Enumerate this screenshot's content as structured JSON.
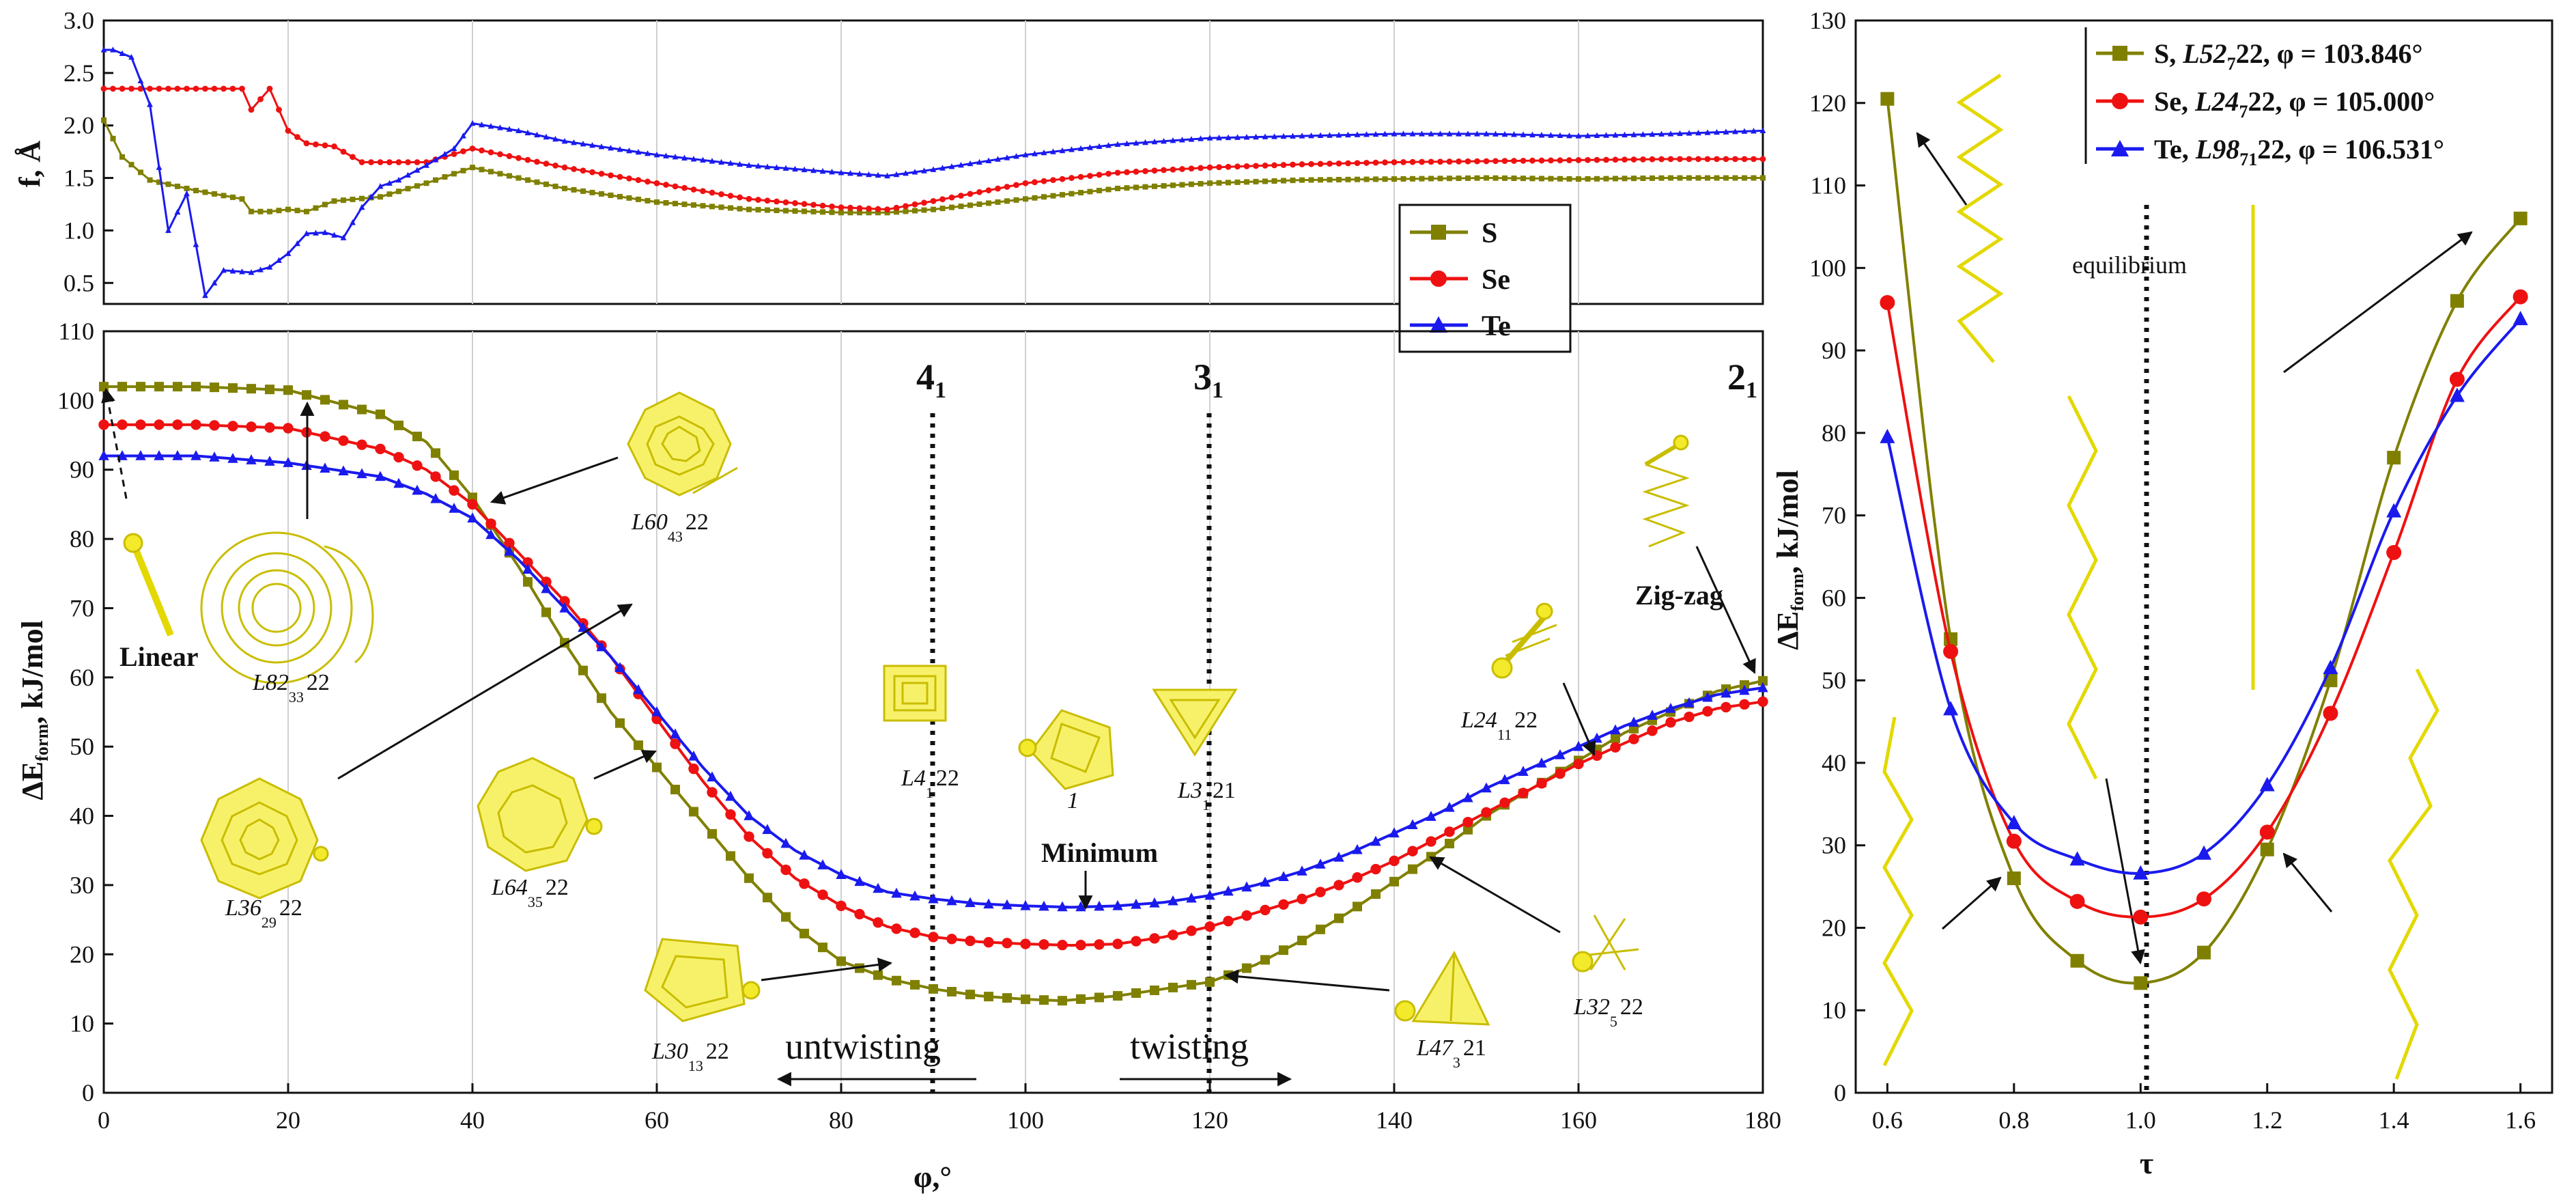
{
  "colors": {
    "S": "#808000",
    "Se": "#ee1111",
    "Te": "#1a1aee",
    "molecule": "#f2ea2a",
    "molecule_edge": "#c9bd00"
  },
  "chart_data": [
    {
      "id": "top-left",
      "type": "line",
      "ylabel": "f, Å",
      "xlim": [
        0,
        180
      ],
      "ylim": [
        0.3,
        3.0
      ],
      "yticks": [
        "0.5",
        "1.0",
        "1.5",
        "2.0",
        "2.5",
        "3.0"
      ],
      "legend": {
        "position": "bottom-right",
        "entries": [
          "S",
          "Se",
          "Te"
        ]
      },
      "series": [
        {
          "name": "S",
          "x": [
            0,
            2,
            5,
            10,
            15,
            16,
            18,
            20,
            22,
            25,
            30,
            35,
            40,
            50,
            60,
            70,
            80,
            85,
            90,
            100,
            110,
            120,
            130,
            140,
            150,
            160,
            170,
            180
          ],
          "y": [
            2.05,
            1.7,
            1.48,
            1.38,
            1.3,
            1.18,
            1.18,
            1.2,
            1.18,
            1.28,
            1.32,
            1.45,
            1.6,
            1.4,
            1.27,
            1.2,
            1.17,
            1.17,
            1.2,
            1.3,
            1.4,
            1.45,
            1.48,
            1.49,
            1.5,
            1.49,
            1.5,
            1.5
          ]
        },
        {
          "name": "Se",
          "x": [
            0,
            5,
            10,
            15,
            16,
            18,
            20,
            22,
            25,
            28,
            30,
            35,
            40,
            50,
            60,
            70,
            80,
            85,
            90,
            100,
            110,
            120,
            130,
            140,
            150,
            160,
            170,
            180
          ],
          "y": [
            2.35,
            2.35,
            2.35,
            2.35,
            2.15,
            2.35,
            1.95,
            1.83,
            1.8,
            1.65,
            1.65,
            1.65,
            1.78,
            1.6,
            1.45,
            1.3,
            1.22,
            1.2,
            1.28,
            1.45,
            1.55,
            1.6,
            1.63,
            1.65,
            1.66,
            1.67,
            1.68,
            1.68
          ]
        },
        {
          "name": "Te",
          "x": [
            0,
            1,
            3,
            5,
            7,
            9,
            11,
            13,
            16,
            18,
            20,
            22,
            24,
            26,
            28,
            30,
            32,
            35,
            38,
            40,
            45,
            50,
            60,
            70,
            80,
            85,
            90,
            100,
            110,
            120,
            130,
            140,
            150,
            160,
            170,
            180
          ],
          "y": [
            2.72,
            2.72,
            2.65,
            2.2,
            1.0,
            1.35,
            0.38,
            0.62,
            0.6,
            0.65,
            0.78,
            0.97,
            0.98,
            0.93,
            1.22,
            1.42,
            1.48,
            1.62,
            1.78,
            2.02,
            1.95,
            1.85,
            1.72,
            1.62,
            1.55,
            1.52,
            1.58,
            1.72,
            1.82,
            1.88,
            1.9,
            1.92,
            1.92,
            1.9,
            1.92,
            1.95
          ]
        }
      ]
    },
    {
      "id": "bottom-left",
      "type": "line",
      "title": "",
      "xlabel": "φ,°",
      "ylabel": "ΔEform, kJ/mol",
      "xlim": [
        0,
        180
      ],
      "ylim": [
        0,
        110
      ],
      "xticks": [
        "0",
        "20",
        "40",
        "60",
        "80",
        "100",
        "120",
        "140",
        "160",
        "180"
      ],
      "yticks": [
        "0",
        "10",
        "20",
        "30",
        "40",
        "50",
        "60",
        "70",
        "80",
        "90",
        "100",
        "110"
      ],
      "series": [
        {
          "name": "S",
          "x": [
            0,
            10,
            20,
            30,
            35,
            40,
            45,
            50,
            55,
            60,
            65,
            70,
            75,
            80,
            85,
            90,
            95,
            100,
            104,
            110,
            115,
            120,
            125,
            130,
            135,
            140,
            145,
            150,
            155,
            160,
            165,
            170,
            175,
            180
          ],
          "y": [
            102,
            102,
            101.5,
            98,
            94,
            86,
            76,
            65,
            55,
            47,
            39,
            31,
            24,
            19,
            16.5,
            15,
            14,
            13.5,
            13.3,
            14,
            15,
            16,
            18.5,
            22,
            26,
            30.5,
            35,
            40,
            44,
            48,
            52,
            55,
            58,
            59.5
          ]
        },
        {
          "name": "Se",
          "x": [
            0,
            10,
            20,
            30,
            35,
            40,
            45,
            50,
            55,
            60,
            65,
            70,
            75,
            80,
            85,
            90,
            95,
            100,
            105,
            110,
            115,
            120,
            125,
            130,
            135,
            140,
            145,
            150,
            155,
            160,
            165,
            170,
            175,
            180
          ],
          "y": [
            96.5,
            96.5,
            96,
            93,
            90,
            85,
            78,
            71,
            63,
            54,
            45,
            37,
            31,
            27,
            24,
            22.5,
            21.8,
            21.5,
            21.3,
            21.5,
            22.5,
            24,
            26,
            28,
            30.5,
            33.5,
            37,
            40.5,
            44,
            47.5,
            50.5,
            53.5,
            55.5,
            56.5
          ]
        },
        {
          "name": "Te",
          "x": [
            0,
            10,
            20,
            30,
            35,
            40,
            45,
            50,
            55,
            60,
            65,
            70,
            75,
            80,
            85,
            90,
            95,
            100,
            105,
            110,
            115,
            120,
            125,
            130,
            135,
            140,
            145,
            150,
            155,
            160,
            165,
            170,
            175,
            180
          ],
          "y": [
            92,
            92,
            91,
            89,
            86.5,
            83,
            77,
            70,
            63,
            55,
            47,
            40,
            35,
            31.5,
            29,
            28,
            27.3,
            27,
            26.8,
            27,
            27.5,
            28.5,
            30,
            32,
            34.5,
            37.5,
            40.5,
            44,
            47,
            50,
            53,
            55.5,
            57.5,
            58.5
          ]
        }
      ],
      "annotations": {
        "helix_labels": [
          {
            "main": "L60",
            "sub1": "22",
            "sub2": "43"
          },
          {
            "main": "L82",
            "sub1": "22",
            "sub2": "33"
          },
          {
            "main": "L36",
            "sub1": "22",
            "sub2": "29"
          },
          {
            "main": "L64",
            "sub1": "22",
            "sub2": "35"
          },
          {
            "main": "L30",
            "sub1": "22",
            "sub2": "13"
          },
          {
            "main": "L4",
            "sub1": "22",
            "sub2": "1"
          },
          {
            "main": "L3",
            "sub1": "21",
            "sub2": "1"
          },
          {
            "main": "L47",
            "sub1": "21",
            "sub2": "3"
          },
          {
            "main": "L32",
            "sub1": "22",
            "sub2": "5"
          },
          {
            "main": "L24",
            "sub1": "22",
            "sub2": "11"
          }
        ],
        "minimum_sub": "1",
        "linear": "Linear",
        "zigzag": "Zig-zag",
        "minimum": "Minimum",
        "untwisting": "untwisting",
        "twisting": "twisting",
        "knot_4": "4",
        "knot_3": "3",
        "knot_2": "2",
        "knot_sub": "1"
      }
    },
    {
      "id": "right",
      "type": "line",
      "xlabel": "τ",
      "ylabel": "ΔEform, kJ/mol",
      "xlim": [
        0.55,
        1.65
      ],
      "ylim": [
        0,
        130
      ],
      "xticks": [
        "0.6",
        "0.8",
        "1.0",
        "1.2",
        "1.4",
        "1.6"
      ],
      "yticks": [
        "0",
        "10",
        "20",
        "30",
        "40",
        "50",
        "60",
        "70",
        "80",
        "90",
        "100",
        "110",
        "120",
        "130"
      ],
      "equilibrium_label": "equilibrium",
      "legend": {
        "position": "top-right",
        "entries": [
          {
            "name": "S",
            "label_prefix": "S, ",
            "code": "L52",
            "sub": "7",
            "suffix": "22, φ = 103.846°"
          },
          {
            "name": "Se",
            "label_prefix": "Se, ",
            "code": "L24",
            "sub": "7",
            "suffix": "22, φ = 105.000°"
          },
          {
            "name": "Te",
            "label_prefix": "Te, ",
            "code": "L98",
            "sub": "71",
            "suffix": "22, φ = 106.531°"
          }
        ]
      },
      "series": [
        {
          "name": "S",
          "x": [
            0.6,
            0.7,
            0.8,
            0.9,
            1.0,
            1.1,
            1.2,
            1.3,
            1.4,
            1.5,
            1.6
          ],
          "y": [
            120.5,
            55,
            26,
            16,
            13.3,
            17,
            29.5,
            50,
            77,
            96,
            106
          ]
        },
        {
          "name": "Se",
          "x": [
            0.6,
            0.7,
            0.8,
            0.9,
            1.0,
            1.1,
            1.2,
            1.3,
            1.4,
            1.5,
            1.6
          ],
          "y": [
            95.8,
            53.5,
            30.5,
            23.2,
            21.3,
            23.5,
            31.6,
            46,
            65.5,
            86.5,
            96.5
          ]
        },
        {
          "name": "Te",
          "x": [
            0.6,
            0.7,
            0.8,
            0.9,
            1.0,
            1.1,
            1.2,
            1.3,
            1.4,
            1.5,
            1.6
          ],
          "y": [
            79.5,
            46.5,
            32.7,
            28.3,
            26.6,
            29,
            37.3,
            51.5,
            70.5,
            84.5,
            93.8
          ]
        }
      ]
    }
  ]
}
